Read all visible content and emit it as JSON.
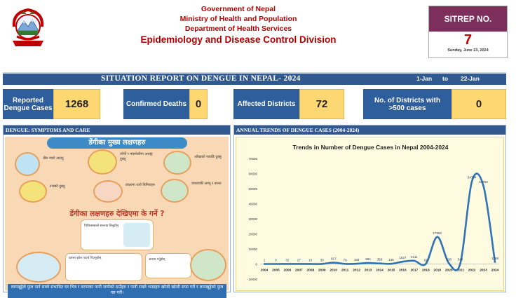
{
  "header": {
    "line1": "Government of Nepal",
    "line2": "Ministry of Health and Population",
    "line3": "Department of Health Services",
    "division": "Epidemiology and Disease Control Division"
  },
  "sitrep": {
    "label": "SITREP NO.",
    "number": "7",
    "date": "Sunday, June 23, 2024"
  },
  "title_bar": {
    "title": "SITUATION REPORT ON DENGUE IN NEPAL- 2024",
    "from": "1-Jan",
    "to_word": "to",
    "to": "22-Jan"
  },
  "stats": [
    {
      "label": "Reported Dengue Cases",
      "value": "1268"
    },
    {
      "label": "Confirmed Deaths",
      "value": "0"
    },
    {
      "label": "Affected Districts",
      "value": "72"
    },
    {
      "label": "No. of Districts with >500 cases",
      "value": "0"
    }
  ],
  "left_panel": {
    "heading": "DENGUE: SYMPTOMS AND CARE",
    "poster_title": "डेंगीका मुख्य लक्षणहरु",
    "poster_subtitle": "डेंगीका लक्षणहरु देखिएमा के गर्ने ?",
    "symptoms": [
      "तीव्र ज्वरो आउनु",
      "जोर्नी र मांसपेशीमा असह्य दुख्नु",
      "आँखाको पछाडि दुख्नु",
      "टाउको दुख्नु",
      "छालामा रातो बिमिराहरु",
      "वाकवाकी लाग्नु र बान्ता"
    ],
    "care": [
      "चिकित्सकको सल्लाह लिनुहोस्",
      "आराम गर्नुहोस्",
      "प्रशस्त झोल पदार्थ पिउनुहोस्"
    ],
    "footer": "लामखुट्टेले फुल पार्न सक्ने संभावित घर भित्र र वरपरका पानी जम्मेको ठाउँहरु र पानी राख्ने भाडाहरु खोजी खोजी सफा गरौं र लामखुट्टेको फुल नष्ट गरौं।",
    "icon": "dengue-poster"
  },
  "right_panel": {
    "heading": "ANNUAL TRENDS OF DENGUE CASES (2004-2024)"
  },
  "chart_data": {
    "type": "line",
    "title": "Trends in Number of Dengue Cases in Nepal 2004-2024",
    "x": [
      "2004",
      "2005",
      "2006",
      "2007",
      "2008",
      "2009",
      "2010",
      "2011",
      "2012",
      "2013",
      "2014",
      "2015",
      "2016",
      "2017",
      "2018",
      "2019",
      "2020",
      "2021",
      "2022",
      "2023",
      "2024"
    ],
    "values": [
      1,
      0,
      32,
      27,
      10,
      30,
      917,
      79,
      183,
      684,
      356,
      135,
      1527,
      2111,
      61,
      17992,
      530,
      540,
      54784,
      51750,
      1268
    ],
    "point_labels": [
      "1",
      "0",
      "32",
      "27",
      "10",
      "30",
      "917",
      "79",
      "183",
      "684",
      "356",
      "135",
      "1527",
      "2111",
      "61",
      "17992",
      "530",
      "540",
      "54784",
      "51750",
      "1268"
    ],
    "ylim": [
      -10000,
      70000
    ],
    "yticks": [
      "70000",
      "60000",
      "50000",
      "40000",
      "30000",
      "20000",
      "10000",
      "0",
      "-10000"
    ],
    "ytick_values": [
      70000,
      60000,
      50000,
      40000,
      30000,
      20000,
      10000,
      0,
      -10000
    ],
    "color": "#2e75b6",
    "grid": false
  }
}
